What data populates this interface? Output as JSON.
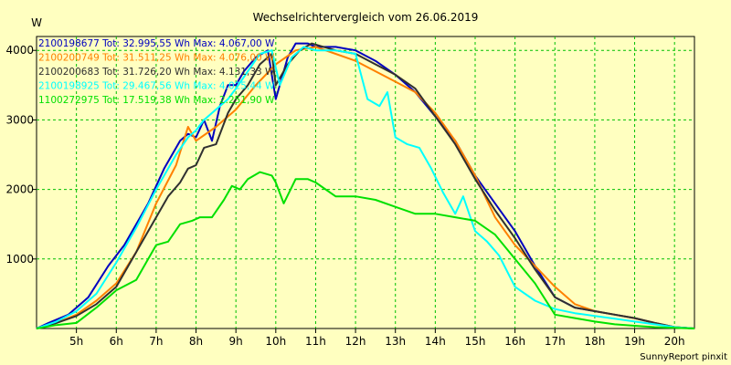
{
  "chart_data": {
    "type": "line",
    "title": "Wechselrichtervergleich vom 26.06.2019",
    "ylabel": "W",
    "xlabel": "",
    "footer": "SunnyReport pinxit",
    "xlim": [
      4,
      20.5
    ],
    "ylim": [
      0,
      4200
    ],
    "grid": true,
    "legend_position": "top-left",
    "x_ticks": [
      5,
      6,
      7,
      8,
      9,
      10,
      11,
      12,
      13,
      14,
      15,
      16,
      17,
      18,
      19,
      20
    ],
    "x_tick_labels": [
      "5h",
      "6h",
      "7h",
      "8h",
      "9h",
      "10h",
      "11h",
      "12h",
      "13h",
      "14h",
      "15h",
      "16h",
      "17h",
      "18h",
      "19h",
      "20h"
    ],
    "y_ticks": [
      1000,
      2000,
      3000,
      4000
    ],
    "y_tick_labels": [
      "1000",
      "2000",
      "3000",
      "4000"
    ],
    "series": [
      {
        "name": "2100198677 Tot: 32.995,55 Wh Max: 4.067,00 W",
        "color": "#0000c0",
        "points": [
          [
            4.0,
            0
          ],
          [
            4.3,
            80
          ],
          [
            4.8,
            200
          ],
          [
            5.3,
            450
          ],
          [
            5.8,
            900
          ],
          [
            6.2,
            1200
          ],
          [
            6.5,
            1500
          ],
          [
            6.8,
            1800
          ],
          [
            7.2,
            2300
          ],
          [
            7.6,
            2700
          ],
          [
            7.8,
            2800
          ],
          [
            8.0,
            2750
          ],
          [
            8.2,
            3000
          ],
          [
            8.4,
            2700
          ],
          [
            8.6,
            3200
          ],
          [
            8.8,
            3500
          ],
          [
            9.0,
            3500
          ],
          [
            9.2,
            3700
          ],
          [
            9.5,
            3900
          ],
          [
            9.8,
            4000
          ],
          [
            10.0,
            3300
          ],
          [
            10.3,
            3900
          ],
          [
            10.5,
            4100
          ],
          [
            10.8,
            4100
          ],
          [
            11.0,
            4050
          ],
          [
            11.5,
            4050
          ],
          [
            12.0,
            4000
          ],
          [
            12.5,
            3850
          ],
          [
            13.0,
            3650
          ],
          [
            13.5,
            3400
          ],
          [
            14.0,
            3050
          ],
          [
            14.5,
            2700
          ],
          [
            15.0,
            2200
          ],
          [
            15.5,
            1800
          ],
          [
            16.0,
            1400
          ],
          [
            16.5,
            900
          ],
          [
            17.0,
            450
          ],
          [
            17.5,
            300
          ],
          [
            18.0,
            250
          ],
          [
            18.5,
            200
          ],
          [
            19.0,
            150
          ],
          [
            19.5,
            80
          ],
          [
            20.0,
            20
          ],
          [
            20.5,
            0
          ]
        ]
      },
      {
        "name": "2100200749 Tot: 31.511,25 Wh Max: 4.076,00 W",
        "color": "#ff8000",
        "points": [
          [
            4.0,
            0
          ],
          [
            4.5,
            80
          ],
          [
            5.0,
            200
          ],
          [
            5.5,
            400
          ],
          [
            6.0,
            650
          ],
          [
            6.5,
            1100
          ],
          [
            7.0,
            1800
          ],
          [
            7.5,
            2350
          ],
          [
            7.8,
            2900
          ],
          [
            8.0,
            2700
          ],
          [
            8.5,
            2900
          ],
          [
            9.0,
            3150
          ],
          [
            9.5,
            3500
          ],
          [
            10.0,
            3800
          ],
          [
            10.5,
            4000
          ],
          [
            11.0,
            4050
          ],
          [
            11.5,
            3950
          ],
          [
            12.0,
            3850
          ],
          [
            12.5,
            3700
          ],
          [
            13.0,
            3550
          ],
          [
            13.5,
            3400
          ],
          [
            14.0,
            3100
          ],
          [
            14.5,
            2700
          ],
          [
            15.0,
            2200
          ],
          [
            15.5,
            1600
          ],
          [
            16.0,
            1200
          ],
          [
            16.5,
            900
          ],
          [
            17.0,
            600
          ],
          [
            17.5,
            350
          ],
          [
            18.0,
            250
          ],
          [
            18.5,
            200
          ],
          [
            19.0,
            150
          ],
          [
            19.5,
            80
          ],
          [
            20.0,
            20
          ],
          [
            20.5,
            0
          ]
        ]
      },
      {
        "name": "2100200683 Tot: 31.726,20 Wh Max: 4.131,33 W",
        "color": "#303030",
        "points": [
          [
            4.0,
            0
          ],
          [
            4.5,
            80
          ],
          [
            5.0,
            180
          ],
          [
            5.5,
            350
          ],
          [
            6.0,
            600
          ],
          [
            6.5,
            1100
          ],
          [
            7.0,
            1600
          ],
          [
            7.3,
            1900
          ],
          [
            7.6,
            2100
          ],
          [
            7.8,
            2300
          ],
          [
            8.0,
            2350
          ],
          [
            8.2,
            2600
          ],
          [
            8.5,
            2650
          ],
          [
            8.8,
            3100
          ],
          [
            9.0,
            3300
          ],
          [
            9.3,
            3500
          ],
          [
            9.6,
            3800
          ],
          [
            9.9,
            3950
          ],
          [
            10.0,
            3500
          ],
          [
            10.3,
            3800
          ],
          [
            10.6,
            4000
          ],
          [
            10.9,
            4100
          ],
          [
            11.2,
            4050
          ],
          [
            11.5,
            4000
          ],
          [
            12.0,
            3950
          ],
          [
            12.5,
            3800
          ],
          [
            13.0,
            3650
          ],
          [
            13.5,
            3450
          ],
          [
            14.0,
            3050
          ],
          [
            14.5,
            2650
          ],
          [
            15.0,
            2150
          ],
          [
            15.5,
            1700
          ],
          [
            16.0,
            1300
          ],
          [
            16.5,
            850
          ],
          [
            17.0,
            450
          ],
          [
            17.5,
            300
          ],
          [
            18.0,
            250
          ],
          [
            18.5,
            200
          ],
          [
            19.0,
            150
          ],
          [
            19.5,
            80
          ],
          [
            20.0,
            20
          ],
          [
            20.5,
            0
          ]
        ]
      },
      {
        "name": "2100198925 Tot: 29.467,56 Wh Max: 4.025,44 W",
        "color": "#00ffff",
        "points": [
          [
            4.0,
            0
          ],
          [
            4.5,
            100
          ],
          [
            5.0,
            250
          ],
          [
            5.5,
            500
          ],
          [
            6.0,
            950
          ],
          [
            6.5,
            1450
          ],
          [
            7.0,
            2000
          ],
          [
            7.5,
            2500
          ],
          [
            7.8,
            2750
          ],
          [
            8.0,
            2850
          ],
          [
            8.2,
            3000
          ],
          [
            8.5,
            3150
          ],
          [
            8.8,
            3300
          ],
          [
            9.0,
            3450
          ],
          [
            9.3,
            3700
          ],
          [
            9.6,
            3950
          ],
          [
            9.9,
            4000
          ],
          [
            10.1,
            3500
          ],
          [
            10.4,
            3900
          ],
          [
            10.7,
            4050
          ],
          [
            11.0,
            4000
          ],
          [
            11.5,
            4000
          ],
          [
            12.0,
            3950
          ],
          [
            12.3,
            3300
          ],
          [
            12.6,
            3200
          ],
          [
            12.8,
            3400
          ],
          [
            13.0,
            2750
          ],
          [
            13.3,
            2650
          ],
          [
            13.6,
            2600
          ],
          [
            13.9,
            2300
          ],
          [
            14.2,
            1950
          ],
          [
            14.5,
            1650
          ],
          [
            14.7,
            1900
          ],
          [
            15.0,
            1400
          ],
          [
            15.3,
            1250
          ],
          [
            15.6,
            1050
          ],
          [
            16.0,
            600
          ],
          [
            16.5,
            400
          ],
          [
            17.0,
            280
          ],
          [
            17.5,
            220
          ],
          [
            18.0,
            180
          ],
          [
            18.5,
            140
          ],
          [
            19.0,
            100
          ],
          [
            19.5,
            60
          ],
          [
            20.0,
            20
          ],
          [
            20.5,
            0
          ]
        ]
      },
      {
        "name": "1100272975 Tot: 17.519,38 Wh Max: 2.251,90 W",
        "color": "#00e000",
        "points": [
          [
            4.0,
            0
          ],
          [
            4.5,
            50
          ],
          [
            5.0,
            80
          ],
          [
            5.5,
            300
          ],
          [
            6.0,
            550
          ],
          [
            6.5,
            700
          ],
          [
            6.8,
            1000
          ],
          [
            7.0,
            1200
          ],
          [
            7.3,
            1250
          ],
          [
            7.6,
            1500
          ],
          [
            7.9,
            1550
          ],
          [
            8.1,
            1600
          ],
          [
            8.4,
            1600
          ],
          [
            8.7,
            1850
          ],
          [
            8.9,
            2050
          ],
          [
            9.1,
            2000
          ],
          [
            9.3,
            2150
          ],
          [
            9.6,
            2250
          ],
          [
            9.9,
            2200
          ],
          [
            10.0,
            2100
          ],
          [
            10.2,
            1800
          ],
          [
            10.5,
            2150
          ],
          [
            10.8,
            2150
          ],
          [
            11.0,
            2100
          ],
          [
            11.5,
            1900
          ],
          [
            12.0,
            1900
          ],
          [
            12.5,
            1850
          ],
          [
            13.0,
            1750
          ],
          [
            13.5,
            1650
          ],
          [
            14.0,
            1650
          ],
          [
            14.5,
            1600
          ],
          [
            15.0,
            1550
          ],
          [
            15.5,
            1350
          ],
          [
            16.0,
            1000
          ],
          [
            16.5,
            650
          ],
          [
            17.0,
            200
          ],
          [
            17.5,
            150
          ],
          [
            18.0,
            100
          ],
          [
            18.5,
            60
          ],
          [
            19.0,
            40
          ],
          [
            19.5,
            20
          ],
          [
            20.0,
            10
          ],
          [
            20.5,
            0
          ]
        ]
      }
    ]
  }
}
